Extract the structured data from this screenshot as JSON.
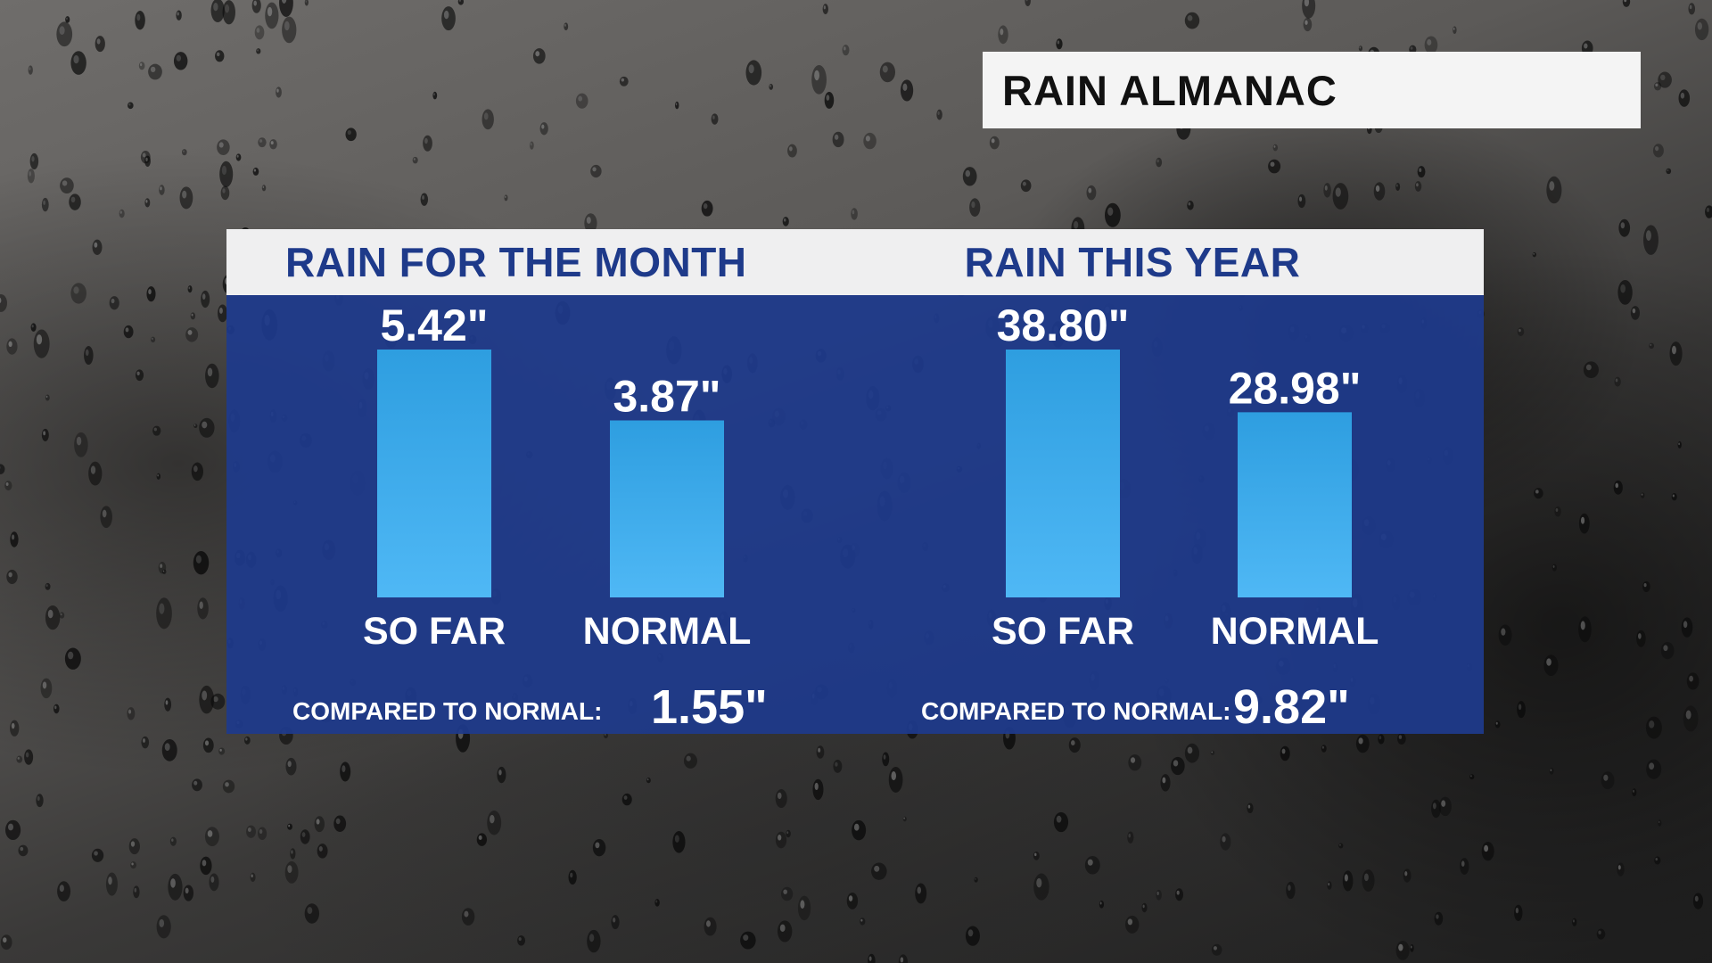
{
  "header": {
    "title": "RAIN ALMANAC"
  },
  "colors": {
    "panel_header_bg": "#efeff0",
    "panel_body_bg": "#1e3a8c",
    "section_title": "#1e3a8a",
    "bar_top": "#2e9ee0",
    "bar_bottom": "#4fb8f5"
  },
  "chart_data": [
    {
      "type": "bar",
      "title": "RAIN FOR THE MONTH",
      "categories": [
        "SO FAR",
        "NORMAL"
      ],
      "values": [
        5.42,
        3.87
      ],
      "value_labels": [
        "5.42\"",
        "3.87\""
      ],
      "unit": "inches",
      "comparison_label": "COMPARED TO NORMAL:",
      "comparison_value": "1.55\""
    },
    {
      "type": "bar",
      "title": "RAIN THIS YEAR",
      "categories": [
        "SO FAR",
        "NORMAL"
      ],
      "values": [
        38.8,
        28.98
      ],
      "value_labels": [
        "38.80\"",
        "28.98\""
      ],
      "unit": "inches",
      "comparison_label": "COMPARED TO NORMAL:",
      "comparison_value": "9.82\""
    }
  ]
}
